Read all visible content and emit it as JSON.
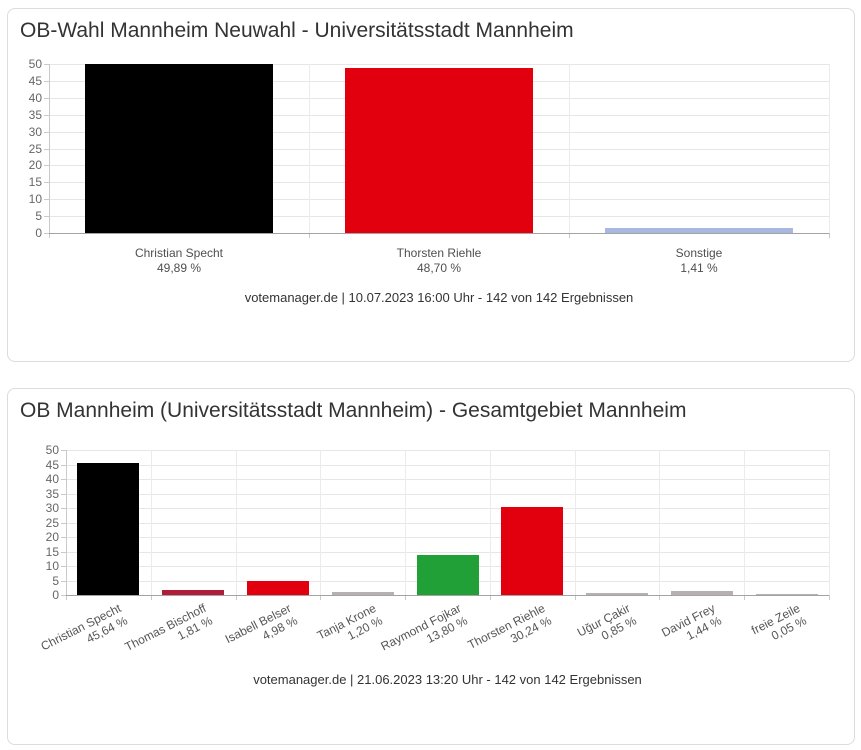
{
  "colors": {
    "card_border": "#dcdcdc",
    "grid": "#e6e6e6",
    "grid_vertical": "#ebebeb",
    "axis_line": "#a3a3a3",
    "tick": "#c9c9c9",
    "title_text": "#333333",
    "axis_text": "#666666",
    "category_text": "#4f4f4f",
    "caption_text": "#333333"
  },
  "chart_data": [
    {
      "type": "bar",
      "title": "OB-Wahl Mannheim Neuwahl - Universitätsstadt Mannheim",
      "caption": "votemanager.de | 10.07.2023 16:00 Uhr - 142 von 142 Ergebnissen",
      "categories": [
        "Christian Specht",
        "Thorsten Riehle",
        "Sonstige"
      ],
      "values": [
        49.89,
        48.7,
        1.41
      ],
      "value_labels": [
        "49,89 %",
        "48,70 %",
        "1,41 %"
      ],
      "bar_colors": [
        "#000000",
        "#e2000f",
        "#a8b8e1"
      ],
      "ylim": [
        0,
        50
      ],
      "ytick_step": 5,
      "grid": true,
      "legend": "none",
      "xlabel_rotation": 0
    },
    {
      "type": "bar",
      "title": "OB Mannheim (Universitätsstadt Mannheim) - Gesamtgebiet Mannheim",
      "caption": "votemanager.de | 21.06.2023 13:20 Uhr - 142 von 142 Ergebnissen",
      "categories": [
        "Christian Specht",
        "Thomas Bischoff",
        "Isabell Belser",
        "Tanja Krone",
        "Raymond Fojkar",
        "Thorsten Riehle",
        "Uğur Çakir",
        "David Frey",
        "freie Zeile"
      ],
      "values": [
        45.64,
        1.81,
        4.98,
        1.2,
        13.8,
        30.24,
        0.85,
        1.44,
        0.05
      ],
      "value_labels": [
        "45,64 %",
        "1,81 %",
        "4,98 %",
        "1,20 %",
        "13,80 %",
        "30,24 %",
        "0,85 %",
        "1,44 %",
        "0,05 %"
      ],
      "bar_colors": [
        "#000000",
        "#b11d38",
        "#e2000f",
        "#b6b0b1",
        "#21a038",
        "#e2000f",
        "#b6b0b1",
        "#b6b0b1",
        "#b6b0b1"
      ],
      "ylim": [
        0,
        50
      ],
      "ytick_step": 5,
      "grid": true,
      "legend": "none",
      "xlabel_rotation": -27
    }
  ]
}
